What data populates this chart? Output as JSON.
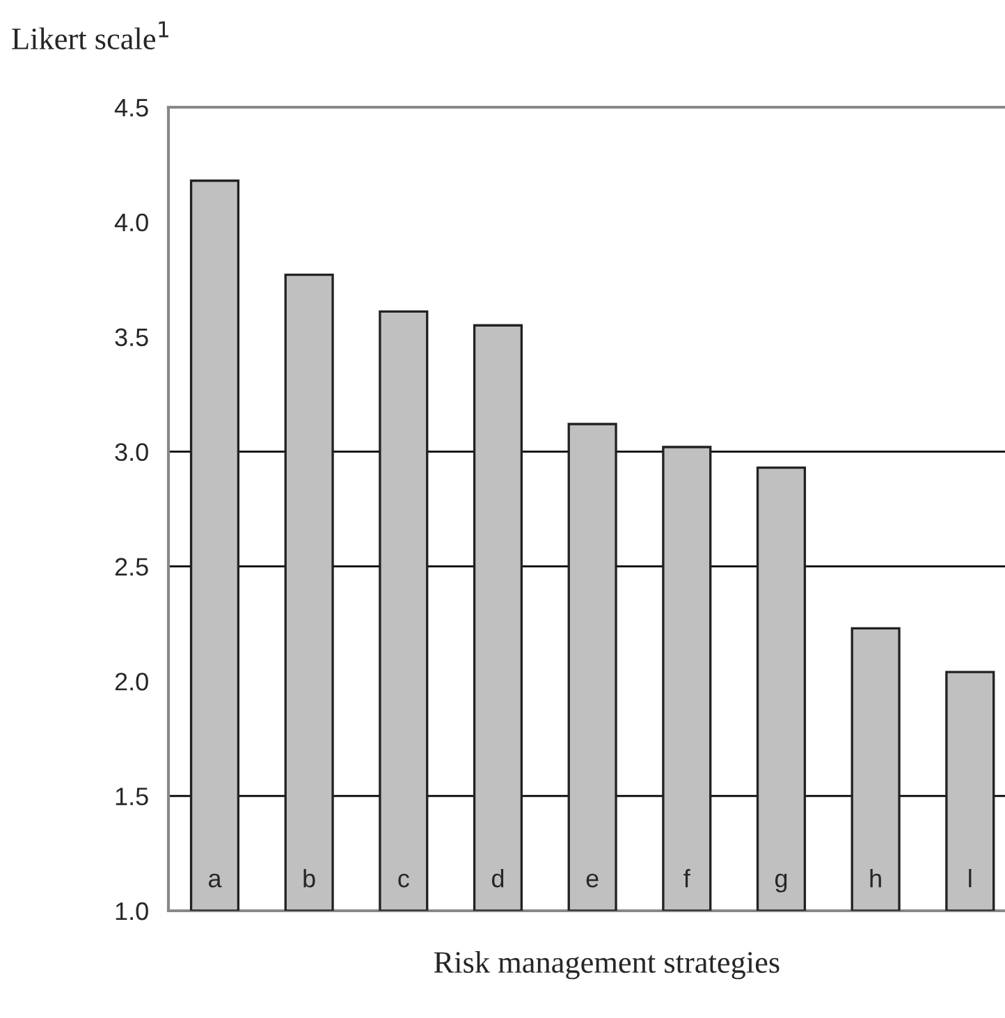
{
  "chart_data": {
    "type": "bar",
    "ylabel": "Likert scale$^{1}$",
    "xlabel": "Risk management strategies",
    "categories": [
      "a",
      "b",
      "c",
      "d",
      "e",
      "f",
      "g",
      "h",
      "l"
    ],
    "values": [
      4.18,
      3.77,
      3.61,
      3.55,
      3.12,
      3.02,
      2.93,
      2.23,
      2.04
    ],
    "color": "#c0c0c0",
    "ylim": [
      1.0,
      4.5
    ],
    "yticks": [
      {
        "value": 1.0,
        "label": "1.0"
      },
      {
        "value": 1.5,
        "label": "1.5"
      },
      {
        "value": 2.0,
        "label": "2.0"
      },
      {
        "value": 2.5,
        "label": "2.5"
      },
      {
        "value": 3.0,
        "label": "3.0"
      },
      {
        "value": 3.5,
        "label": "3.5"
      },
      {
        "value": 4.0,
        "label": "4.0"
      },
      {
        "value": 4.5,
        "label": "4.5"
      }
    ],
    "ref_lines": [
      {
        "axis": "y",
        "value": 1.5,
        "color": "#000000"
      },
      {
        "axis": "y",
        "value": 2.5,
        "color": "#000000"
      },
      {
        "axis": "y",
        "value": 3.0,
        "color": "#000000"
      }
    ]
  }
}
